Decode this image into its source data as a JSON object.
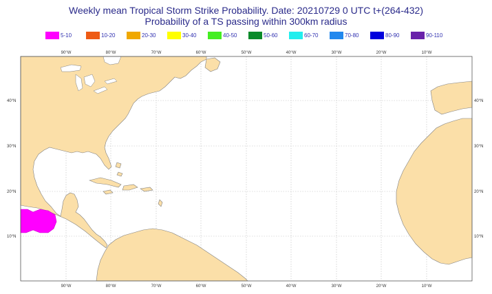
{
  "title": "Weekly mean Tropical Storm Strike Probability. Date: 20210729  0 UTC    t+(264-432)",
  "subtitle": "Probability of a TS passing within  300km radius",
  "legend": [
    {
      "label": "5-10",
      "color": "#ff00ff"
    },
    {
      "label": "10-20",
      "color": "#ee5a14"
    },
    {
      "label": "20-30",
      "color": "#f0a800"
    },
    {
      "label": "30-40",
      "color": "#ffff00"
    },
    {
      "label": "40-50",
      "color": "#44ee22"
    },
    {
      "label": "50-60",
      "color": "#0a8a2a"
    },
    {
      "label": "60-70",
      "color": "#22eeee"
    },
    {
      "label": "70-80",
      "color": "#2288ee"
    },
    {
      "label": "80-90",
      "color": "#0000dd"
    },
    {
      "label": "90-110",
      "color": "#6a22aa"
    }
  ],
  "map": {
    "land_color": "#fbdfa8",
    "ocean_color": "#ffffff",
    "longitude_labels": [
      "90°W",
      "80°W",
      "70°W",
      "60°W",
      "50°W",
      "40°W",
      "30°W",
      "20°W",
      "10°W"
    ],
    "latitude_labels": [
      "40°N",
      "30°N",
      "20°N",
      "10°N"
    ],
    "probability_area": {
      "range": "5-10",
      "color": "#ff00ff"
    }
  }
}
